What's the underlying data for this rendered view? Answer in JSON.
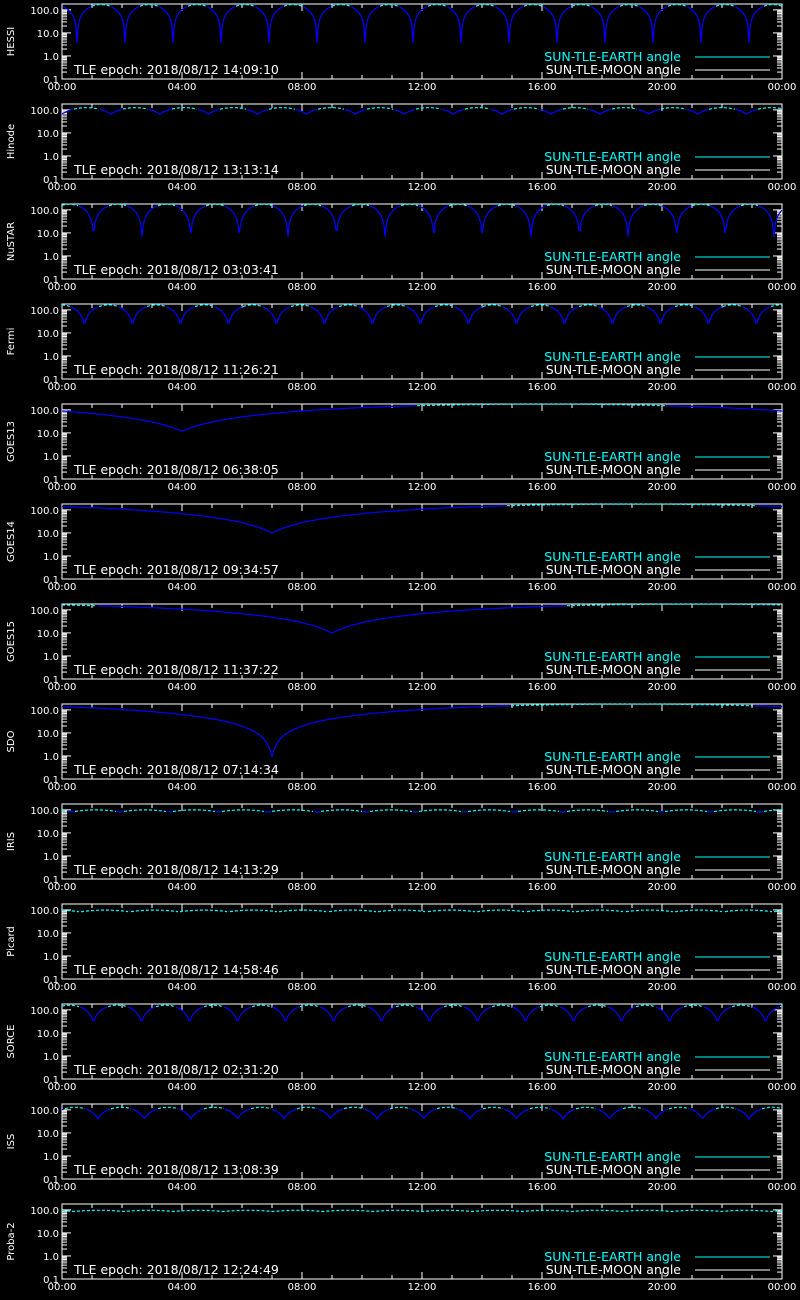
{
  "colors": {
    "background": "#000000",
    "axes": "#ffffff",
    "earth": "#00ffff",
    "moon": "#ffffff",
    "curve_low": "#0000ff"
  },
  "chart_data": {
    "type": "line",
    "xticks": [
      "00:00",
      "04:00",
      "08:00",
      "12:00",
      "16:00",
      "20:00",
      "00:00"
    ],
    "yticks": [
      "0.1",
      "1.0",
      "10.0",
      "100.0"
    ],
    "ylim": [
      0.1,
      180
    ],
    "yscale": "log",
    "xlim_hours": [
      0,
      24
    ],
    "legend": [
      "SUN-TLE-EARTH angle",
      "SUN-TLE-MOON angle"
    ],
    "legend_placement": "bottom-right",
    "panels": [
      {
        "satellite": "HESSI",
        "epoch": "TLE epoch: 2018/08/12 14:09:10",
        "kind": "orbit",
        "period_h": 1.6,
        "phase_h": 0.5,
        "min_deg": 3.5,
        "max_deg": 170
      },
      {
        "satellite": "Hinode",
        "epoch": "TLE epoch: 2018/08/12 13:13:14",
        "kind": "orbit",
        "period_h": 1.63,
        "phase_h": 0.0,
        "min_deg": 65,
        "max_deg": 125
      },
      {
        "satellite": "NuSTAR",
        "epoch": "TLE epoch: 2018/08/12 03:03:41",
        "kind": "orbit",
        "period_h": 1.62,
        "phase_h": 1.05,
        "min_deg": 5,
        "max_deg": 175
      },
      {
        "satellite": "Fermi",
        "epoch": "TLE epoch: 2018/08/12 11:26:21",
        "kind": "orbit",
        "period_h": 1.6,
        "phase_h": 0.75,
        "min_deg": 20,
        "max_deg": 165
      },
      {
        "satellite": "GOES13",
        "epoch": "TLE epoch: 2018/08/12 06:38:05",
        "kind": "geo",
        "min_time_h": 4.0,
        "min_deg": 12,
        "max_deg": 178
      },
      {
        "satellite": "GOES14",
        "epoch": "TLE epoch: 2018/08/12 09:34:57",
        "kind": "geo",
        "min_time_h": 7.0,
        "min_deg": 10,
        "max_deg": 178
      },
      {
        "satellite": "GOES15",
        "epoch": "TLE epoch: 2018/08/12 11:37:22",
        "kind": "geo",
        "min_time_h": 9.0,
        "min_deg": 10,
        "max_deg": 178
      },
      {
        "satellite": "SDO",
        "epoch": "TLE epoch: 2018/08/12 07:14:34",
        "kind": "geo",
        "min_time_h": 7.0,
        "min_deg": 0.9,
        "max_deg": 178
      },
      {
        "satellite": "IRIS",
        "epoch": "TLE epoch: 2018/08/12 14:13:29",
        "kind": "orbit",
        "period_h": 1.64,
        "phase_h": 0.3,
        "min_deg": 80,
        "max_deg": 100
      },
      {
        "satellite": "Picard",
        "epoch": "TLE epoch: 2018/08/12 14:58:46",
        "kind": "orbit",
        "period_h": 1.65,
        "phase_h": 0.6,
        "min_deg": 82,
        "max_deg": 98
      },
      {
        "satellite": "SORCE",
        "epoch": "TLE epoch: 2018/08/12 02:31:20",
        "kind": "orbit",
        "period_h": 1.6,
        "phase_h": 1.05,
        "min_deg": 28,
        "max_deg": 160
      },
      {
        "satellite": "ISS",
        "epoch": "TLE epoch: 2018/08/12 13:08:39",
        "kind": "orbit",
        "period_h": 1.55,
        "phase_h": 1.2,
        "min_deg": 40,
        "max_deg": 130
      },
      {
        "satellite": "Proba-2",
        "epoch": "TLE epoch: 2018/08/12 12:24:49",
        "kind": "orbit",
        "period_h": 1.66,
        "phase_h": 0.4,
        "min_deg": 85,
        "max_deg": 96
      }
    ]
  }
}
